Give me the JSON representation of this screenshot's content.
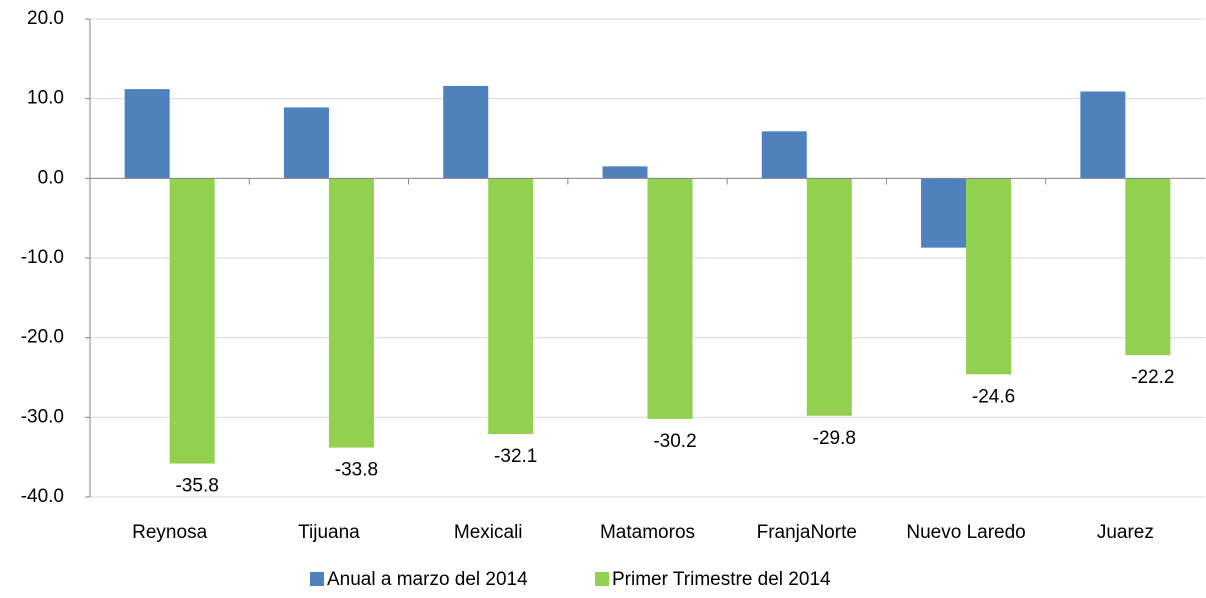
{
  "chart_data": {
    "type": "bar",
    "categories": [
      "Reynosa",
      "Tijuana",
      "Mexicali",
      "Matamoros",
      "FranjaNorte",
      "Nuevo Laredo",
      "Juarez"
    ],
    "series": [
      {
        "name": "Anual a marzo del 2014",
        "color": "#4f81bd",
        "values": [
          11.2,
          8.9,
          11.6,
          1.5,
          5.9,
          -8.7,
          10.9
        ]
      },
      {
        "name": "Primer Trimestre del 2014",
        "color": "#92d050",
        "values": [
          -35.8,
          -33.8,
          -32.1,
          -30.2,
          -29.8,
          -24.6,
          -22.2
        ],
        "data_labels": true
      }
    ],
    "ylim": [
      -40,
      20
    ],
    "yticks": [
      {
        "value": -40,
        "label": "-40.0"
      },
      {
        "value": -30,
        "label": "-30.0"
      },
      {
        "value": -20,
        "label": "-20.0"
      },
      {
        "value": -10,
        "label": "-10.0"
      },
      {
        "value": 0,
        "label": "0.0"
      },
      {
        "value": 10,
        "label": "10.0"
      },
      {
        "value": 20,
        "label": "20.0"
      }
    ],
    "grid": true,
    "legend": "bottom"
  }
}
